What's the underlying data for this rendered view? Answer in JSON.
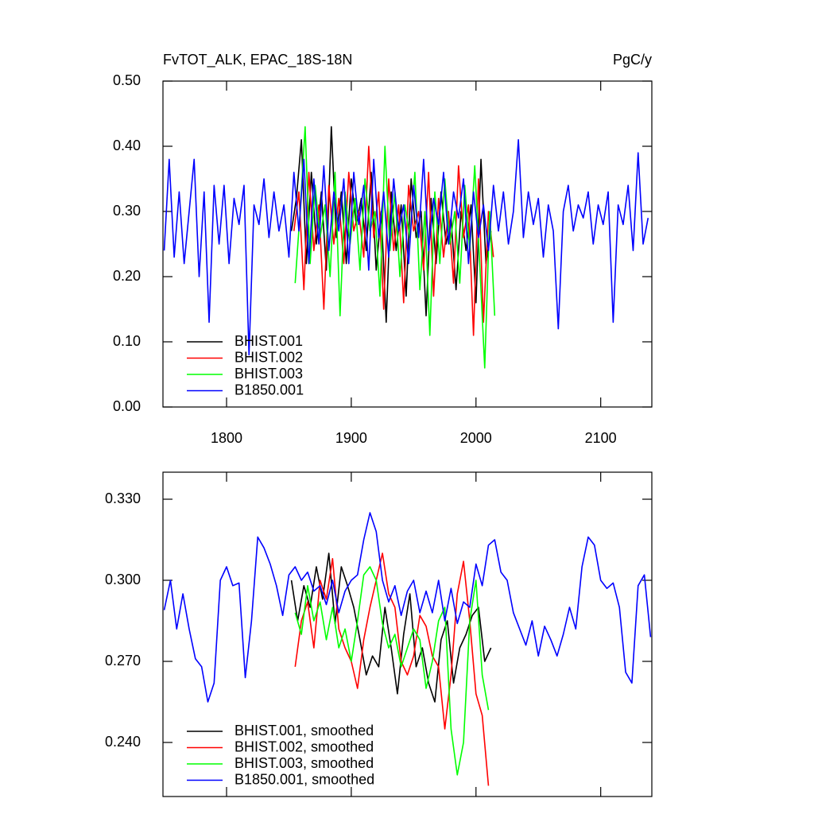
{
  "chart_data": [
    {
      "type": "line",
      "title": "FvTOT_ALK, EPAC_18S-18N",
      "units": "PgC/y",
      "xlim": [
        1749,
        2141
      ],
      "xticks": [
        1800,
        1900,
        2000,
        2100
      ],
      "xtick_labels": true,
      "ylim": [
        0,
        0.5
      ],
      "yticks": [
        {
          "value": 0,
          "label": "0.00"
        },
        {
          "value": 0.1,
          "label": "0.10"
        },
        {
          "value": 0.2,
          "label": "0.20"
        },
        {
          "value": 0.3,
          "label": "0.30"
        },
        {
          "value": 0.4,
          "label": "0.40"
        },
        {
          "value": 0.5,
          "label": "0.50"
        }
      ],
      "legend": "lower left",
      "series": [
        {
          "name": "BHIST.001",
          "color": "#000000",
          "x": [
            1852,
            1856,
            1860,
            1864,
            1868,
            1872,
            1876,
            1880,
            1884,
            1888,
            1892,
            1896,
            1900,
            1904,
            1908,
            1912,
            1916,
            1920,
            1924,
            1928,
            1932,
            1936,
            1940,
            1944,
            1948,
            1952,
            1956,
            1960,
            1964,
            1968,
            1972,
            1976,
            1980,
            1984,
            1988,
            1992,
            1996,
            2000,
            2004,
            2008,
            2012
          ],
          "values": [
            0.27,
            0.32,
            0.41,
            0.22,
            0.36,
            0.25,
            0.33,
            0.21,
            0.43,
            0.26,
            0.33,
            0.22,
            0.35,
            0.28,
            0.32,
            0.24,
            0.36,
            0.21,
            0.3,
            0.13,
            0.33,
            0.24,
            0.31,
            0.17,
            0.35,
            0.26,
            0.3,
            0.14,
            0.32,
            0.22,
            0.33,
            0.25,
            0.29,
            0.18,
            0.3,
            0.24,
            0.31,
            0.16,
            0.38,
            0.22,
            0.27
          ]
        },
        {
          "name": "BHIST.002",
          "color": "#ff0000",
          "x": [
            1854,
            1858,
            1862,
            1866,
            1870,
            1874,
            1878,
            1882,
            1886,
            1890,
            1894,
            1898,
            1902,
            1906,
            1910,
            1914,
            1918,
            1922,
            1926,
            1930,
            1934,
            1938,
            1942,
            1946,
            1950,
            1954,
            1958,
            1962,
            1966,
            1970,
            1974,
            1978,
            1982,
            1986,
            1990,
            1994,
            1998,
            2002,
            2006,
            2010,
            2014
          ],
          "values": [
            0.27,
            0.33,
            0.18,
            0.36,
            0.24,
            0.31,
            0.15,
            0.34,
            0.25,
            0.32,
            0.22,
            0.36,
            0.27,
            0.3,
            0.23,
            0.4,
            0.26,
            0.33,
            0.15,
            0.35,
            0.24,
            0.31,
            0.16,
            0.34,
            0.27,
            0.3,
            0.21,
            0.36,
            0.17,
            0.32,
            0.23,
            0.3,
            0.19,
            0.37,
            0.26,
            0.31,
            0.11,
            0.35,
            0.13,
            0.3,
            0.23
          ]
        },
        {
          "name": "BHIST.003",
          "color": "#00ff00",
          "x": [
            1855,
            1859,
            1863,
            1867,
            1871,
            1875,
            1879,
            1883,
            1887,
            1891,
            1895,
            1899,
            1903,
            1907,
            1911,
            1915,
            1919,
            1923,
            1927,
            1931,
            1935,
            1939,
            1943,
            1947,
            1951,
            1955,
            1959,
            1963,
            1967,
            1971,
            1975,
            1979,
            1983,
            1987,
            1991,
            1995,
            1999,
            2003,
            2007,
            2011,
            2015
          ],
          "values": [
            0.19,
            0.3,
            0.43,
            0.22,
            0.34,
            0.26,
            0.31,
            0.2,
            0.36,
            0.14,
            0.33,
            0.25,
            0.32,
            0.21,
            0.35,
            0.27,
            0.3,
            0.17,
            0.4,
            0.24,
            0.33,
            0.2,
            0.31,
            0.26,
            0.36,
            0.18,
            0.3,
            0.11,
            0.33,
            0.22,
            0.35,
            0.25,
            0.3,
            0.19,
            0.34,
            0.24,
            0.37,
            0.22,
            0.06,
            0.3,
            0.14
          ]
        },
        {
          "name": "B1850.001",
          "color": "#0000ff",
          "x": [
            1750,
            1754,
            1758,
            1762,
            1766,
            1770,
            1774,
            1778,
            1782,
            1786,
            1790,
            1794,
            1798,
            1802,
            1806,
            1810,
            1814,
            1818,
            1822,
            1826,
            1830,
            1834,
            1838,
            1842,
            1846,
            1850,
            1854,
            1858,
            1862,
            1866,
            1870,
            1874,
            1878,
            1882,
            1886,
            1890,
            1894,
            1898,
            1902,
            1906,
            1910,
            1914,
            1918,
            1922,
            1926,
            1930,
            1934,
            1938,
            1942,
            1946,
            1950,
            1954,
            1958,
            1962,
            1966,
            1970,
            1974,
            1978,
            1982,
            1986,
            1990,
            1994,
            1998,
            2002,
            2006,
            2010,
            2014,
            2018,
            2022,
            2026,
            2030,
            2034,
            2038,
            2042,
            2046,
            2050,
            2054,
            2058,
            2062,
            2066,
            2070,
            2074,
            2078,
            2082,
            2086,
            2090,
            2094,
            2098,
            2102,
            2106,
            2110,
            2114,
            2118,
            2122,
            2126,
            2130,
            2134,
            2138
          ],
          "values": [
            0.24,
            0.38,
            0.23,
            0.33,
            0.22,
            0.3,
            0.38,
            0.2,
            0.33,
            0.13,
            0.34,
            0.25,
            0.34,
            0.22,
            0.32,
            0.28,
            0.34,
            0.08,
            0.31,
            0.28,
            0.35,
            0.26,
            0.33,
            0.27,
            0.31,
            0.23,
            0.36,
            0.27,
            0.38,
            0.22,
            0.35,
            0.25,
            0.37,
            0.24,
            0.33,
            0.27,
            0.35,
            0.22,
            0.36,
            0.28,
            0.34,
            0.21,
            0.38,
            0.26,
            0.33,
            0.23,
            0.35,
            0.27,
            0.31,
            0.22,
            0.34,
            0.26,
            0.38,
            0.24,
            0.32,
            0.28,
            0.36,
            0.25,
            0.33,
            0.29,
            0.35,
            0.22,
            0.33,
            0.26,
            0.31,
            0.24,
            0.34,
            0.27,
            0.33,
            0.25,
            0.3,
            0.41,
            0.26,
            0.33,
            0.28,
            0.32,
            0.23,
            0.31,
            0.27,
            0.12,
            0.3,
            0.34,
            0.27,
            0.31,
            0.29,
            0.33,
            0.25,
            0.31,
            0.28,
            0.33,
            0.13,
            0.31,
            0.28,
            0.34,
            0.24,
            0.39,
            0.25,
            0.29
          ]
        }
      ]
    },
    {
      "type": "line",
      "xlim": [
        1749,
        2141
      ],
      "xticks": [
        1800,
        1900,
        2000,
        2100
      ],
      "xtick_labels": false,
      "ylim": [
        0.22,
        0.34
      ],
      "yticks": [
        {
          "value": 0.24,
          "label": "0.240"
        },
        {
          "value": 0.27,
          "label": "0.270"
        },
        {
          "value": 0.3,
          "label": "0.300"
        },
        {
          "value": 0.33,
          "label": "0.330"
        }
      ],
      "legend": "lower left",
      "series": [
        {
          "name": "BHIST.001, smoothed",
          "color": "#000000",
          "x": [
            1852,
            1857,
            1862,
            1867,
            1872,
            1877,
            1882,
            1887,
            1892,
            1897,
            1902,
            1907,
            1912,
            1917,
            1922,
            1927,
            1932,
            1937,
            1942,
            1947,
            1952,
            1957,
            1962,
            1967,
            1972,
            1977,
            1982,
            1987,
            1992,
            1997,
            2002,
            2007,
            2012
          ],
          "values": [
            0.3,
            0.285,
            0.298,
            0.29,
            0.305,
            0.293,
            0.31,
            0.284,
            0.305,
            0.298,
            0.29,
            0.278,
            0.265,
            0.272,
            0.268,
            0.29,
            0.275,
            0.258,
            0.28,
            0.295,
            0.268,
            0.275,
            0.262,
            0.255,
            0.278,
            0.285,
            0.262,
            0.275,
            0.28,
            0.287,
            0.29,
            0.27,
            0.275
          ]
        },
        {
          "name": "BHIST.002, smoothed",
          "color": "#ff0000",
          "x": [
            1855,
            1860,
            1865,
            1870,
            1875,
            1880,
            1885,
            1890,
            1895,
            1900,
            1905,
            1910,
            1915,
            1920,
            1925,
            1930,
            1935,
            1940,
            1945,
            1950,
            1955,
            1960,
            1965,
            1970,
            1975,
            1980,
            1985,
            1990,
            1995,
            2000,
            2005,
            2010
          ],
          "values": [
            0.268,
            0.285,
            0.292,
            0.275,
            0.3,
            0.293,
            0.308,
            0.282,
            0.275,
            0.27,
            0.26,
            0.278,
            0.29,
            0.3,
            0.31,
            0.295,
            0.29,
            0.27,
            0.265,
            0.272,
            0.287,
            0.283,
            0.272,
            0.268,
            0.245,
            0.265,
            0.295,
            0.307,
            0.285,
            0.258,
            0.25,
            0.224
          ]
        },
        {
          "name": "BHIST.003, smoothed",
          "color": "#00ff00",
          "x": [
            1855,
            1860,
            1865,
            1870,
            1875,
            1880,
            1885,
            1890,
            1895,
            1900,
            1905,
            1910,
            1915,
            1920,
            1925,
            1930,
            1935,
            1940,
            1945,
            1950,
            1955,
            1960,
            1965,
            1970,
            1975,
            1980,
            1985,
            1990,
            1995,
            2000,
            2005,
            2010
          ],
          "values": [
            0.288,
            0.28,
            0.298,
            0.285,
            0.292,
            0.278,
            0.29,
            0.275,
            0.282,
            0.27,
            0.285,
            0.302,
            0.305,
            0.3,
            0.284,
            0.275,
            0.28,
            0.268,
            0.275,
            0.282,
            0.278,
            0.26,
            0.27,
            0.285,
            0.29,
            0.245,
            0.228,
            0.24,
            0.285,
            0.3,
            0.265,
            0.252
          ]
        },
        {
          "name": "B1850.001, smoothed",
          "color": "#0000ff",
          "x": [
            1750,
            1755,
            1760,
            1765,
            1770,
            1775,
            1780,
            1785,
            1790,
            1795,
            1800,
            1805,
            1810,
            1815,
            1820,
            1825,
            1830,
            1835,
            1840,
            1845,
            1850,
            1855,
            1860,
            1865,
            1870,
            1875,
            1880,
            1885,
            1890,
            1895,
            1900,
            1905,
            1910,
            1915,
            1920,
            1925,
            1930,
            1935,
            1940,
            1945,
            1950,
            1955,
            1960,
            1965,
            1970,
            1975,
            1980,
            1985,
            1990,
            1995,
            2000,
            2005,
            2010,
            2015,
            2020,
            2025,
            2030,
            2035,
            2040,
            2045,
            2050,
            2055,
            2060,
            2065,
            2070,
            2075,
            2080,
            2085,
            2090,
            2095,
            2100,
            2105,
            2110,
            2115,
            2120,
            2125,
            2130,
            2135,
            2140
          ],
          "values": [
            0.289,
            0.3,
            0.282,
            0.295,
            0.282,
            0.271,
            0.268,
            0.255,
            0.262,
            0.3,
            0.305,
            0.298,
            0.299,
            0.264,
            0.285,
            0.316,
            0.312,
            0.306,
            0.298,
            0.287,
            0.302,
            0.305,
            0.3,
            0.303,
            0.296,
            0.298,
            0.291,
            0.3,
            0.288,
            0.296,
            0.3,
            0.302,
            0.315,
            0.325,
            0.318,
            0.3,
            0.292,
            0.298,
            0.287,
            0.296,
            0.3,
            0.288,
            0.296,
            0.288,
            0.3,
            0.285,
            0.297,
            0.284,
            0.292,
            0.29,
            0.306,
            0.298,
            0.313,
            0.315,
            0.303,
            0.3,
            0.288,
            0.282,
            0.276,
            0.285,
            0.272,
            0.283,
            0.278,
            0.272,
            0.28,
            0.29,
            0.282,
            0.305,
            0.316,
            0.313,
            0.3,
            0.297,
            0.299,
            0.29,
            0.266,
            0.262,
            0.298,
            0.302,
            0.279
          ]
        }
      ]
    }
  ]
}
